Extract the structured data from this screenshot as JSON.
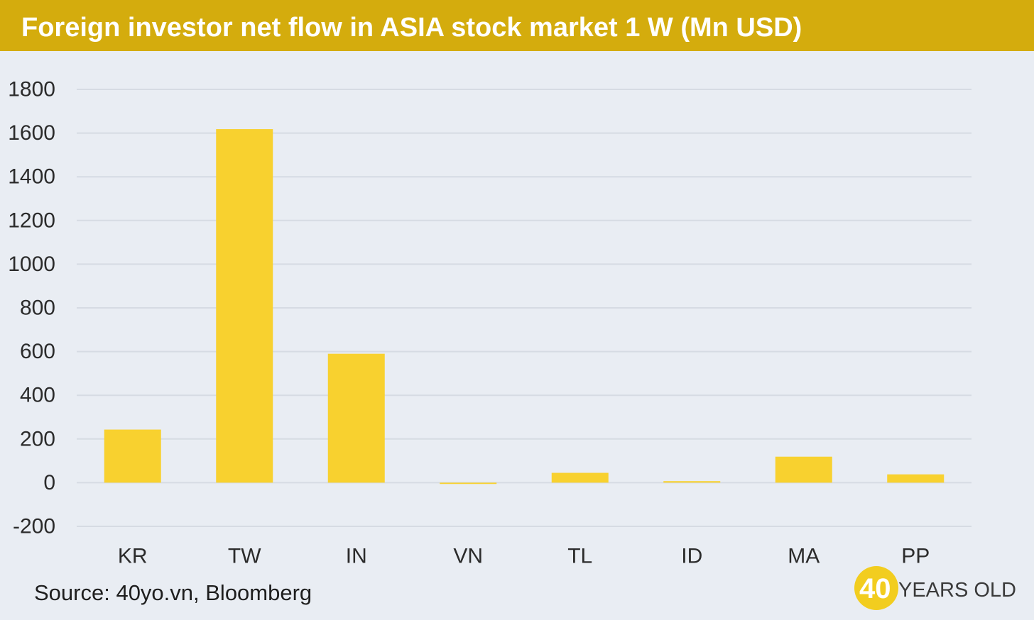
{
  "colors": {
    "header_bg": "#d4ac0d",
    "bar": "#f8d12f",
    "grid": "#d6dbe3",
    "background": "#e9edf3"
  },
  "header": {
    "title": "Foreign investor net flow in ASIA stock market 1 W (Mn USD)"
  },
  "chart_data": {
    "type": "bar",
    "title": "Foreign investor net flow in ASIA stock market 1 W (Mn USD)",
    "categories": [
      "KR",
      "TW",
      "IN",
      "VN",
      "TL",
      "ID",
      "MA",
      "PP"
    ],
    "values": [
      243,
      1618,
      590,
      -6,
      45,
      7,
      119,
      38
    ],
    "y_ticks": [
      "-200",
      "0",
      "200",
      "400",
      "600",
      "800",
      "1000",
      "1200",
      "1400",
      "1600",
      "1800"
    ],
    "ylim": [
      -200,
      1800
    ],
    "xlabel": "",
    "ylabel": "",
    "grid": true,
    "legend": "none"
  },
  "footer": {
    "source": "Source: 40yo.vn, Bloomberg",
    "logo": {
      "number": "40",
      "text": "YEARS OLD"
    }
  }
}
